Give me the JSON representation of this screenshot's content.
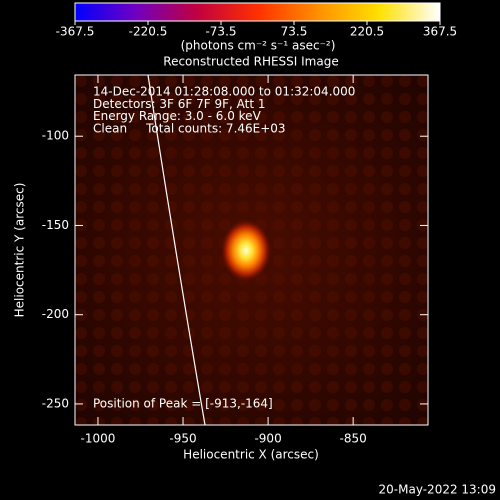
{
  "chart_data": {
    "type": "heatmap",
    "title": "Reconstructed RHESSI Image",
    "xlabel": "Heliocentric X (arcsec)",
    "ylabel": "Heliocentric Y (arcsec)",
    "xlim": [
      -1013.5,
      -806
    ],
    "ylim": [
      -261.8,
      -65.7
    ],
    "xticks": [
      -1000,
      -950,
      -900,
      -850
    ],
    "yticks": [
      -250,
      -200,
      -150,
      -100
    ],
    "colorbar": {
      "lim": [
        -367.5,
        367.5
      ],
      "ticks": [
        -367.5,
        -220.5,
        -73.5,
        73.5,
        220.5,
        367.5
      ],
      "label": "(photons cm⁻² s⁻¹ asec⁻²)",
      "colors": [
        "#0000ff",
        "#7000c0",
        "#c00040",
        "#ff3000",
        "#ff9000",
        "#ffe000",
        "#ffffff"
      ]
    },
    "peak": {
      "x": -913,
      "y": -164
    },
    "annotations": [
      "14-Dec-2014 01:28:08.000 to 01:32:04.000",
      "Detectors: 3F 6F 7F 9F, Att 1",
      "Energy Range: 3.0 - 6.0 keV",
      "Clean     Total counts: 7.46E+03"
    ],
    "peak_label": "Position of Peak = [-913,-164]",
    "timestamp": "20-May-2022 13:09"
  }
}
